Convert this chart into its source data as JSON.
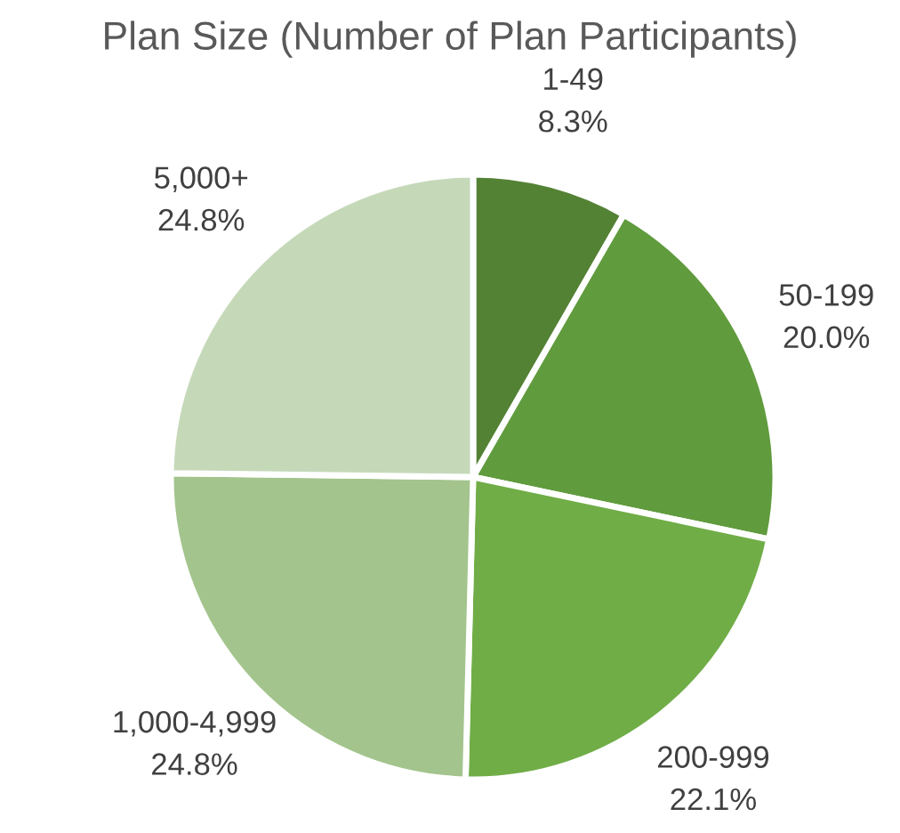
{
  "chart_data": {
    "type": "pie",
    "title": "Plan Size (Number of Plan Participants)",
    "categories": [
      "1-49",
      "50-199",
      "200-999",
      "1,000-4,999",
      "5,000+"
    ],
    "values": [
      8.3,
      20.0,
      22.1,
      24.8,
      24.8
    ],
    "value_labels": [
      "8.3%",
      "20.0%",
      "22.1%",
      "24.8%",
      "24.8%"
    ],
    "colors": [
      "#548235",
      "#609b3d",
      "#70ad47",
      "#a3c48d",
      "#c5d9b9"
    ],
    "legend": false
  }
}
